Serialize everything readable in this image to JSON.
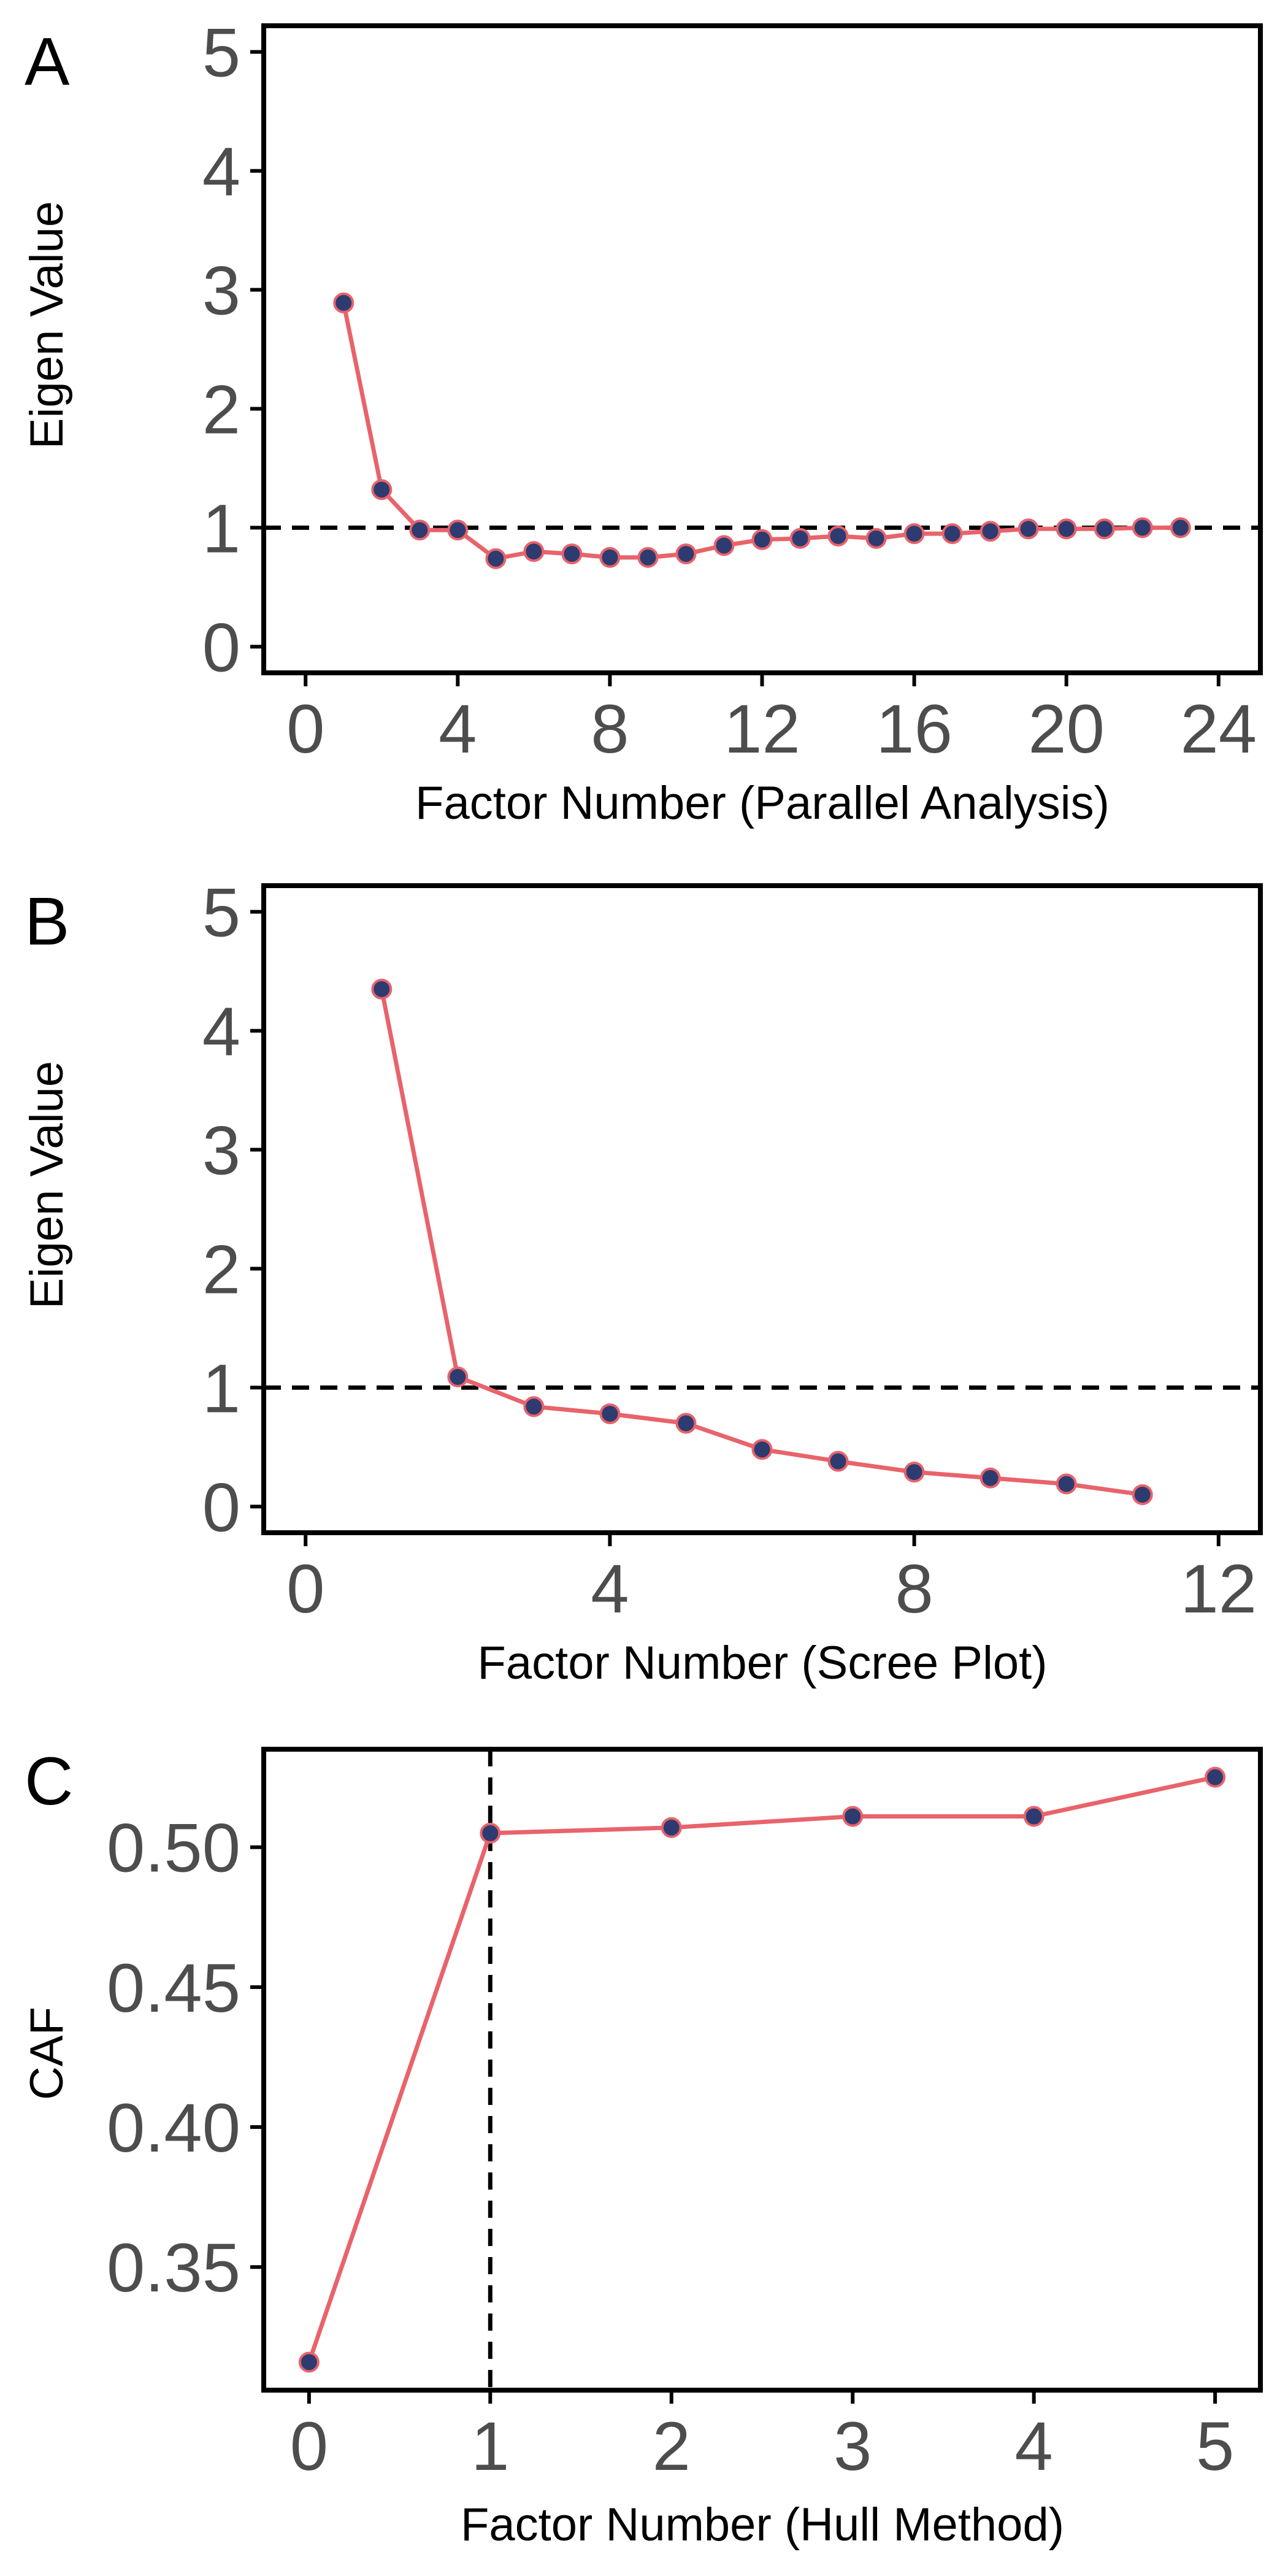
{
  "colors": {
    "line": "#E8636B",
    "point_fill": "#2E3B70",
    "point_stroke": "#E8636B",
    "reference_line": "#000000",
    "frame": "#000000",
    "tick_text": "#4D4D4D",
    "background": "#FFFFFF"
  },
  "chart_data": [
    {
      "panel": "A",
      "type": "line",
      "xlabel": "Factor Number (Parallel Analysis)",
      "ylabel": "Eigen Value",
      "xlim": [
        -1.1,
        25.1
      ],
      "ylim": [
        -0.22,
        5.22
      ],
      "xticks": [
        0,
        4,
        8,
        12,
        16,
        20,
        24
      ],
      "yticks": [
        0,
        1,
        2,
        3,
        4,
        5
      ],
      "grid": false,
      "x": [
        1,
        2,
        3,
        4,
        5,
        6,
        7,
        8,
        9,
        10,
        11,
        12,
        13,
        14,
        15,
        16,
        17,
        18,
        19,
        20,
        21,
        22,
        23
      ],
      "y": [
        2.89,
        1.32,
        0.98,
        0.98,
        0.74,
        0.8,
        0.78,
        0.75,
        0.75,
        0.78,
        0.85,
        0.9,
        0.91,
        0.93,
        0.91,
        0.95,
        0.95,
        0.97,
        0.99,
        0.99,
        0.99,
        1.0,
        1.0
      ],
      "hline": 1
    },
    {
      "panel": "B",
      "type": "line",
      "xlabel": "Factor Number (Scree Plot)",
      "ylabel": "Eigen Value",
      "xlim": [
        -0.55,
        12.55
      ],
      "ylim": [
        -0.22,
        5.22
      ],
      "xticks": [
        0,
        4,
        8,
        12
      ],
      "yticks": [
        0,
        1,
        2,
        3,
        4,
        5
      ],
      "grid": false,
      "x": [
        1,
        2,
        3,
        4,
        5,
        6,
        7,
        8,
        9,
        10,
        11
      ],
      "y": [
        4.35,
        1.09,
        0.84,
        0.78,
        0.7,
        0.48,
        0.38,
        0.29,
        0.24,
        0.19,
        0.1
      ],
      "hline": 1
    },
    {
      "panel": "C",
      "type": "line",
      "xlabel": "Factor Number (Hull Method)",
      "ylabel": "CAF",
      "xlim": [
        -0.25,
        5.25
      ],
      "ylim": [
        0.306,
        0.535
      ],
      "xticks": [
        0,
        1,
        2,
        3,
        4,
        5
      ],
      "yticks": [
        0.35,
        0.4,
        0.45,
        0.5
      ],
      "grid": false,
      "x": [
        0,
        1,
        2,
        3,
        4,
        5
      ],
      "y": [
        0.316,
        0.505,
        0.507,
        0.511,
        0.511,
        0.525
      ],
      "vline": 1
    }
  ]
}
